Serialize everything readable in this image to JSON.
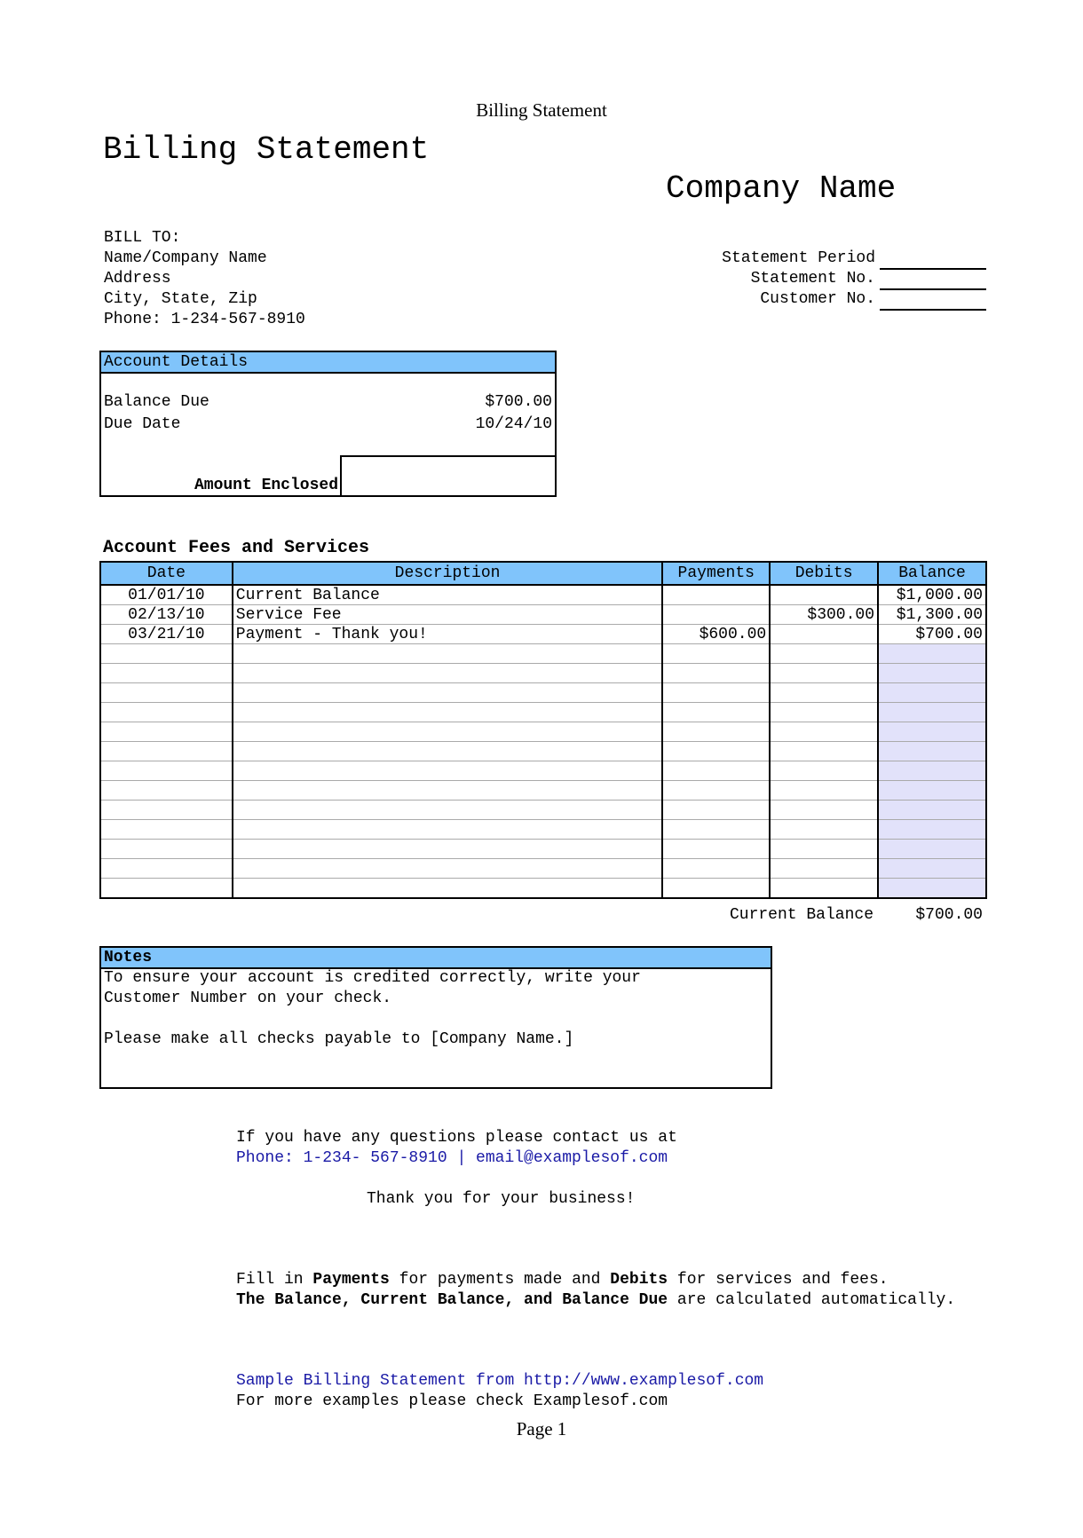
{
  "page_header": "Billing Statement",
  "title": "Billing Statement",
  "company_name": "Company Name",
  "bill_to": {
    "label": "BILL TO:",
    "lines": [
      "Name/Company Name",
      "Address",
      "City, State, Zip",
      "Phone: 1-234-567-8910"
    ]
  },
  "statement_fields": [
    {
      "label": "Statement Period",
      "value": ""
    },
    {
      "label": "Statement No.",
      "value": ""
    },
    {
      "label": "Customer No.",
      "value": ""
    }
  ],
  "account_details": {
    "header": "Account Details",
    "balance_due_label": "Balance Due",
    "balance_due": "$700.00",
    "due_date_label": "Due Date",
    "due_date": "10/24/10",
    "amount_enclosed_label": "Amount Enclosed",
    "amount_enclosed": ""
  },
  "fees": {
    "title": "Account Fees and Services",
    "columns": [
      "Date",
      "Description",
      "Payments",
      "Debits",
      "Balance"
    ],
    "rows": [
      [
        "01/01/10",
        "Current Balance",
        "",
        "",
        "$1,000.00"
      ],
      [
        "02/13/10",
        "Service Fee",
        "",
        "$300.00",
        "$1,300.00"
      ],
      [
        "03/21/10",
        "Payment - Thank you!",
        "$600.00",
        "",
        "$700.00"
      ],
      [
        "",
        "",
        "",
        "",
        ""
      ],
      [
        "",
        "",
        "",
        "",
        ""
      ],
      [
        "",
        "",
        "",
        "",
        ""
      ],
      [
        "",
        "",
        "",
        "",
        ""
      ],
      [
        "",
        "",
        "",
        "",
        ""
      ],
      [
        "",
        "",
        "",
        "",
        ""
      ],
      [
        "",
        "",
        "",
        "",
        ""
      ],
      [
        "",
        "",
        "",
        "",
        ""
      ],
      [
        "",
        "",
        "",
        "",
        ""
      ],
      [
        "",
        "",
        "",
        "",
        ""
      ],
      [
        "",
        "",
        "",
        "",
        ""
      ],
      [
        "",
        "",
        "",
        "",
        ""
      ],
      [
        "",
        "",
        "",
        "",
        ""
      ]
    ],
    "current_balance_label": "Current Balance",
    "current_balance": "$700.00"
  },
  "notes": {
    "header": "Notes",
    "lines": [
      "To ensure your account is credited correctly, write your",
      "Customer Number on your check.",
      "",
      "Please make all checks payable to [Company Name.]"
    ]
  },
  "contact": {
    "line1": "If you have any questions please contact us at",
    "line2": "Phone: 1-234- 567-8910 | email@examplesof.com",
    "thanks": "Thank you for your business!"
  },
  "instructions": {
    "p1_a": "Fill in ",
    "p1_b": "Payments",
    "p1_c": " for payments made and ",
    "p1_d": "Debits",
    "p1_e": " for services and fees.",
    "p2_a": "The Balance, Current Balance, and Balance Due",
    "p2_b": " are calculated automatically."
  },
  "footer": {
    "sample": "Sample Billing Statement from http://www.examplesof.com",
    "more": "For more examples please check Examplesof.com",
    "page": "Page 1"
  },
  "colors": {
    "header_fill": "#80c4fb",
    "balance_fill": "#e2e2fa",
    "link": "#1a1aa6"
  }
}
